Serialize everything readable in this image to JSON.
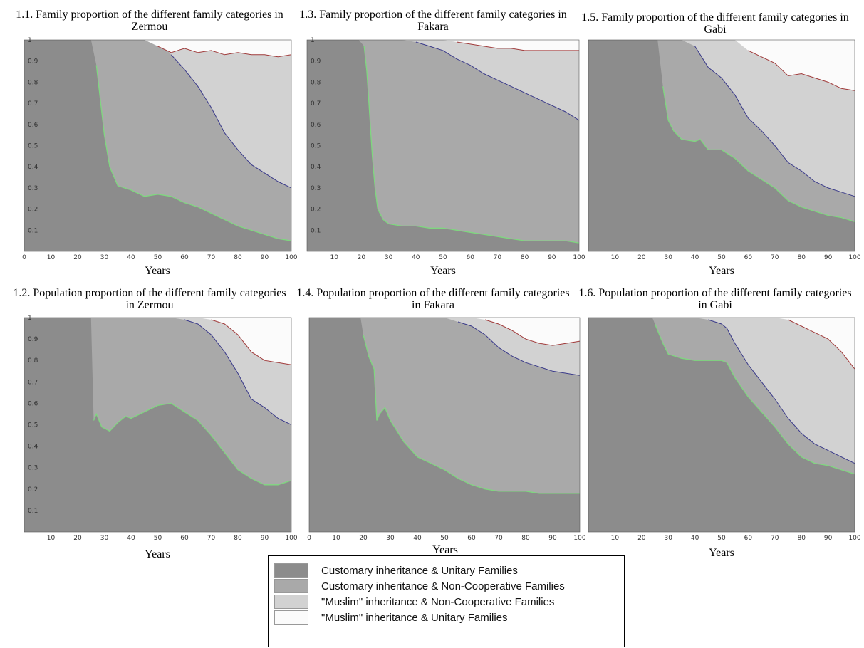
{
  "colors": {
    "unitary_customary": "#8c8c8c",
    "noncoop_customary": "#a9a9a9",
    "noncoop_muslim": "#d2d2d2",
    "unitary_muslim": "#fbfbfb",
    "line1": "#7fd77f",
    "line2": "#3a3a8a",
    "line3": "#a03a3a"
  },
  "legend": {
    "items": [
      {
        "label": "Customary inheritance & Unitary Families",
        "color": "#8c8c8c"
      },
      {
        "label": "Customary inheritance & Non-Cooperative Families",
        "color": "#a9a9a9"
      },
      {
        "label": "\"Muslim\" inheritance & Non-Cooperative Families",
        "color": "#d2d2d2"
      },
      {
        "label": "\"Muslim\" inheritance & Unitary Families",
        "color": "#fbfbfb"
      }
    ]
  },
  "chart_data": [
    {
      "type": "area",
      "title": "1.1. Family proportion of the different family categories in Zermou",
      "xlabel": "Years",
      "xlim": [
        0,
        100
      ],
      "ylim": [
        0,
        1
      ],
      "xticks": [
        "0",
        "10",
        "20",
        "30",
        "40",
        "50",
        "60",
        "70",
        "80",
        "90",
        "100"
      ],
      "yticks": [
        "0.1",
        "0.2",
        "0.3",
        "0.4",
        "0.5",
        "0.6",
        "0.7",
        "0.8",
        "0.9",
        "1"
      ],
      "x": [
        0,
        10,
        20,
        25,
        27,
        30,
        32,
        35,
        40,
        45,
        50,
        55,
        60,
        65,
        70,
        75,
        80,
        85,
        90,
        95,
        100
      ],
      "boundaries": [
        [
          1,
          1,
          1,
          1,
          0.88,
          0.55,
          0.4,
          0.31,
          0.29,
          0.26,
          0.27,
          0.26,
          0.23,
          0.21,
          0.18,
          0.15,
          0.12,
          0.1,
          0.08,
          0.06,
          0.05
        ],
        [
          1,
          1,
          1,
          1,
          1,
          1,
          1,
          1,
          1,
          1,
          1,
          0.93,
          0.86,
          0.78,
          0.68,
          0.56,
          0.48,
          0.41,
          0.37,
          0.33,
          0.3
        ],
        [
          1,
          1,
          1,
          1,
          1,
          1,
          1,
          1,
          1,
          1,
          0.97,
          0.94,
          0.96,
          0.94,
          0.95,
          0.93,
          0.94,
          0.93,
          0.93,
          0.92,
          0.93
        ]
      ]
    },
    {
      "type": "area",
      "title": "1.2. Population proportion of the different family categories in Zermou",
      "xlabel": "Years",
      "xlim": [
        0,
        100
      ],
      "ylim": [
        0,
        1
      ],
      "xticks": [
        "10",
        "20",
        "30",
        "40",
        "50",
        "60",
        "70",
        "80",
        "90",
        "100"
      ],
      "yticks": [
        "0.1",
        "0.2",
        "0.3",
        "0.4",
        "0.5",
        "0.6",
        "0.7",
        "0.8",
        "0.9",
        "1"
      ],
      "x": [
        0,
        10,
        20,
        25,
        26,
        27,
        29,
        32,
        35,
        38,
        40,
        45,
        50,
        55,
        60,
        65,
        70,
        75,
        80,
        85,
        90,
        95,
        100
      ],
      "boundaries": [
        [
          1,
          1,
          1,
          1,
          0.52,
          0.55,
          0.49,
          0.47,
          0.51,
          0.54,
          0.53,
          0.56,
          0.59,
          0.6,
          0.56,
          0.52,
          0.45,
          0.37,
          0.29,
          0.25,
          0.22,
          0.22,
          0.24
        ],
        [
          1,
          1,
          1,
          1,
          1,
          1,
          1,
          1,
          1,
          1,
          1,
          1,
          1,
          1,
          0.99,
          0.97,
          0.92,
          0.84,
          0.74,
          0.62,
          0.58,
          0.53,
          0.5
        ],
        [
          1,
          1,
          1,
          1,
          1,
          1,
          1,
          1,
          1,
          1,
          1,
          1,
          1,
          1,
          1,
          1,
          0.99,
          0.97,
          0.92,
          0.84,
          0.8,
          0.79,
          0.78
        ]
      ]
    },
    {
      "type": "area",
      "title": "1.3. Family proportion of the different family categories in Fakara",
      "xlabel": "Years",
      "xlim": [
        0,
        100
      ],
      "ylim": [
        0,
        1
      ],
      "xticks": [
        "10",
        "20",
        "30",
        "40",
        "50",
        "60",
        "70",
        "80",
        "90",
        "100"
      ],
      "yticks": [
        "0.1",
        "0.2",
        "0.3",
        "0.4",
        "0.5",
        "0.6",
        "0.7",
        "0.8",
        "0.9",
        "1"
      ],
      "x": [
        0,
        10,
        19,
        21,
        22,
        23,
        24,
        25,
        26,
        28,
        30,
        35,
        40,
        45,
        50,
        55,
        60,
        65,
        70,
        75,
        80,
        85,
        90,
        95,
        100
      ],
      "boundaries": [
        [
          1,
          1,
          1,
          0.97,
          0.85,
          0.65,
          0.45,
          0.3,
          0.2,
          0.15,
          0.13,
          0.12,
          0.12,
          0.11,
          0.11,
          0.1,
          0.09,
          0.08,
          0.07,
          0.06,
          0.05,
          0.05,
          0.05,
          0.05,
          0.04
        ],
        [
          1,
          1,
          1,
          1,
          1,
          1,
          1,
          1,
          1,
          1,
          1,
          1,
          0.99,
          0.97,
          0.95,
          0.91,
          0.88,
          0.84,
          0.81,
          0.78,
          0.75,
          0.72,
          0.69,
          0.66,
          0.62
        ],
        [
          1,
          1,
          1,
          1,
          1,
          1,
          1,
          1,
          1,
          1,
          1,
          1,
          1,
          1,
          1,
          0.99,
          0.98,
          0.97,
          0.96,
          0.96,
          0.95,
          0.95,
          0.95,
          0.95,
          0.95
        ]
      ]
    },
    {
      "type": "area",
      "title": "1.4. Population proportion of the different family categories in Fakara",
      "xlabel": "Years",
      "xlim": [
        0,
        100
      ],
      "ylim": [
        0,
        1
      ],
      "xticks": [
        "0",
        "10",
        "20",
        "30",
        "40",
        "50",
        "60",
        "70",
        "80",
        "90",
        "100"
      ],
      "yticks": [],
      "x": [
        0,
        10,
        19,
        20,
        22,
        24,
        25,
        26,
        28,
        30,
        35,
        40,
        45,
        50,
        55,
        60,
        65,
        70,
        75,
        80,
        85,
        90,
        95,
        100
      ],
      "boundaries": [
        [
          1,
          1,
          1,
          0.92,
          0.82,
          0.76,
          0.52,
          0.55,
          0.58,
          0.52,
          0.42,
          0.35,
          0.32,
          0.29,
          0.25,
          0.22,
          0.2,
          0.19,
          0.19,
          0.19,
          0.18,
          0.18,
          0.18,
          0.18
        ],
        [
          1,
          1,
          1,
          1,
          1,
          1,
          1,
          1,
          1,
          1,
          1,
          1,
          1,
          1,
          0.98,
          0.96,
          0.92,
          0.86,
          0.82,
          0.79,
          0.77,
          0.75,
          0.74,
          0.73
        ],
        [
          1,
          1,
          1,
          1,
          1,
          1,
          1,
          1,
          1,
          1,
          1,
          1,
          1,
          1,
          1,
          1,
          0.99,
          0.97,
          0.94,
          0.9,
          0.88,
          0.87,
          0.88,
          0.89
        ]
      ]
    },
    {
      "type": "area",
      "title": "1.5. Family proportion of the different family categories in Gabi",
      "xlabel": "Years",
      "xlim": [
        0,
        100
      ],
      "ylim": [
        0,
        1
      ],
      "xticks": [
        "10",
        "20",
        "30",
        "40",
        "50",
        "60",
        "70",
        "80",
        "90",
        "100"
      ],
      "yticks": [],
      "x": [
        0,
        10,
        20,
        26,
        28,
        30,
        32,
        35,
        40,
        42,
        45,
        50,
        55,
        60,
        65,
        70,
        75,
        80,
        85,
        90,
        95,
        100
      ],
      "boundaries": [
        [
          1,
          1,
          1,
          1,
          0.78,
          0.62,
          0.57,
          0.53,
          0.52,
          0.53,
          0.48,
          0.48,
          0.44,
          0.38,
          0.34,
          0.3,
          0.24,
          0.21,
          0.19,
          0.17,
          0.16,
          0.14
        ],
        [
          1,
          1,
          1,
          1,
          1,
          1,
          1,
          1,
          0.97,
          0.93,
          0.87,
          0.82,
          0.74,
          0.63,
          0.57,
          0.5,
          0.42,
          0.38,
          0.33,
          0.3,
          0.28,
          0.26
        ],
        [
          1,
          1,
          1,
          1,
          1,
          1,
          1,
          1,
          1,
          1,
          1,
          1,
          1,
          0.95,
          0.92,
          0.89,
          0.83,
          0.84,
          0.82,
          0.8,
          0.77,
          0.76
        ]
      ]
    },
    {
      "type": "area",
      "title": "1.6. Population proportion of the different family categories in Gabi",
      "xlabel": "Years",
      "xlim": [
        0,
        100
      ],
      "ylim": [
        0,
        1
      ],
      "xticks": [
        "10",
        "20",
        "30",
        "40",
        "50",
        "60",
        "70",
        "80",
        "90",
        "100"
      ],
      "yticks": [],
      "x": [
        0,
        10,
        20,
        24,
        25,
        28,
        30,
        35,
        40,
        45,
        50,
        52,
        55,
        60,
        65,
        70,
        75,
        80,
        85,
        90,
        95,
        100
      ],
      "boundaries": [
        [
          1,
          1,
          1,
          1,
          0.97,
          0.88,
          0.83,
          0.81,
          0.8,
          0.8,
          0.8,
          0.79,
          0.72,
          0.63,
          0.56,
          0.49,
          0.41,
          0.35,
          0.32,
          0.31,
          0.29,
          0.27
        ],
        [
          1,
          1,
          1,
          1,
          1,
          1,
          1,
          1,
          1,
          0.99,
          0.97,
          0.95,
          0.88,
          0.78,
          0.7,
          0.62,
          0.53,
          0.46,
          0.41,
          0.38,
          0.35,
          0.32
        ],
        [
          1,
          1,
          1,
          1,
          1,
          1,
          1,
          1,
          1,
          1,
          1,
          1,
          1,
          1,
          1,
          1,
          0.99,
          0.96,
          0.93,
          0.9,
          0.84,
          0.76
        ]
      ]
    }
  ]
}
